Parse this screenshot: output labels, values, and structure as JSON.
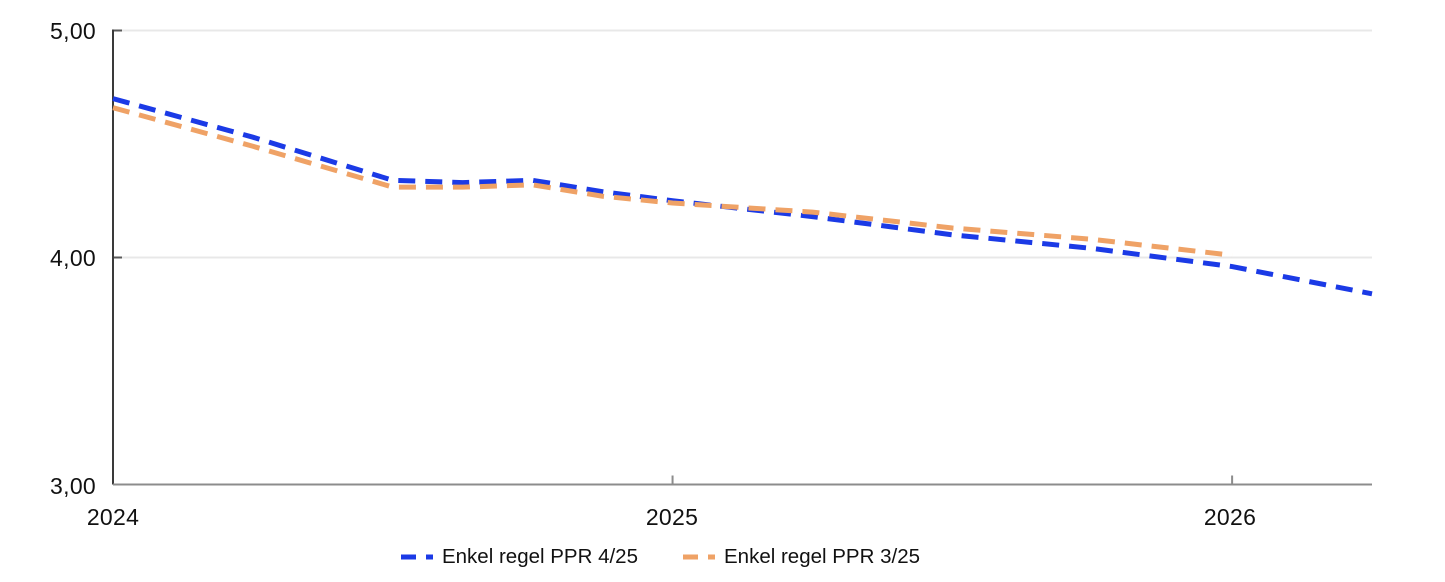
{
  "chart_data": {
    "type": "line",
    "title": "",
    "xlabel": "",
    "ylabel": "",
    "xlim": [
      2024,
      2026.25
    ],
    "ylim": [
      3.0,
      5.0
    ],
    "grid": "horizontal",
    "legend_position": "bottom-center",
    "y_ticks": [
      {
        "value": 5,
        "label": "5,00"
      },
      {
        "value": 4,
        "label": "4,00"
      },
      {
        "value": 3,
        "label": "3,00"
      }
    ],
    "x_ticks": [
      {
        "value": 2024,
        "label": "2024"
      },
      {
        "value": 2025,
        "label": "2025"
      },
      {
        "value": 2026,
        "label": "2026"
      }
    ],
    "series": [
      {
        "name": "Enkel regel PPR 4/25",
        "color": "#1b3ae6",
        "dash": [
          17,
          10
        ],
        "line_width": 5,
        "x": [
          2024.0,
          2024.25,
          2024.5,
          2024.625,
          2024.75,
          2024.875,
          2025.0,
          2025.25,
          2025.5,
          2025.75,
          2026.0,
          2026.25
        ],
        "values": [
          4.7,
          4.53,
          4.34,
          4.33,
          4.34,
          4.29,
          4.25,
          4.18,
          4.1,
          4.04,
          3.96,
          3.84
        ]
      },
      {
        "name": "Enkel regel PPR 3/25",
        "color": "#efa266",
        "dash": [
          17,
          10
        ],
        "line_width": 5,
        "x": [
          2024.0,
          2024.25,
          2024.5,
          2024.625,
          2024.75,
          2024.875,
          2025.0,
          2025.25,
          2025.5,
          2025.75,
          2026.0
        ],
        "values": [
          4.66,
          4.49,
          4.31,
          4.31,
          4.32,
          4.27,
          4.24,
          4.2,
          4.13,
          4.08,
          4.01
        ]
      }
    ],
    "colors": {
      "grid": "#e8e8e8",
      "y_axis": "#3a3a3a",
      "x_axis": "#8c8c8c",
      "tick": "#5a5a5a"
    }
  }
}
